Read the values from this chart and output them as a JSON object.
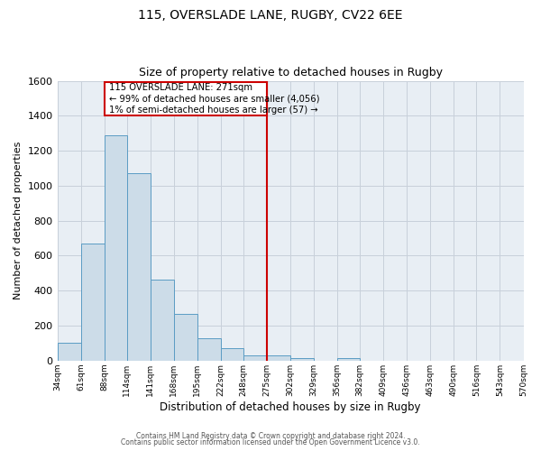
{
  "title": "115, OVERSLADE LANE, RUGBY, CV22 6EE",
  "subtitle": "Size of property relative to detached houses in Rugby",
  "xlabel": "Distribution of detached houses by size in Rugby",
  "ylabel": "Number of detached properties",
  "footer_lines": [
    "Contains HM Land Registry data © Crown copyright and database right 2024.",
    "Contains public sector information licensed under the Open Government Licence v3.0."
  ],
  "bin_edges": [
    34,
    61,
    88,
    114,
    141,
    168,
    195,
    222,
    248,
    275,
    302,
    329,
    356,
    382,
    409,
    436,
    463,
    490,
    516,
    543,
    570
  ],
  "bar_heights": [
    100,
    670,
    1290,
    1070,
    465,
    265,
    130,
    70,
    30,
    30,
    15,
    0,
    15,
    0,
    0,
    0,
    0,
    0,
    0,
    0
  ],
  "bar_color": "#ccdce8",
  "bar_edge_color": "#5b9cc4",
  "property_line_x": 275,
  "property_line_color": "#cc0000",
  "annotation_text_line1": "115 OVERSLADE LANE: 271sqm",
  "annotation_text_line2": "← 99% of detached houses are smaller (4,056)",
  "annotation_text_line3": "1% of semi-detached houses are larger (57) →",
  "annotation_box_color": "#cc0000",
  "ylim": [
    0,
    1600
  ],
  "yticks": [
    0,
    200,
    400,
    600,
    800,
    1000,
    1200,
    1400,
    1600
  ],
  "background_color": "#ffffff",
  "plot_bg_color": "#e8eef4",
  "grid_color": "#c8d0da",
  "title_fontsize": 10,
  "subtitle_fontsize": 9
}
